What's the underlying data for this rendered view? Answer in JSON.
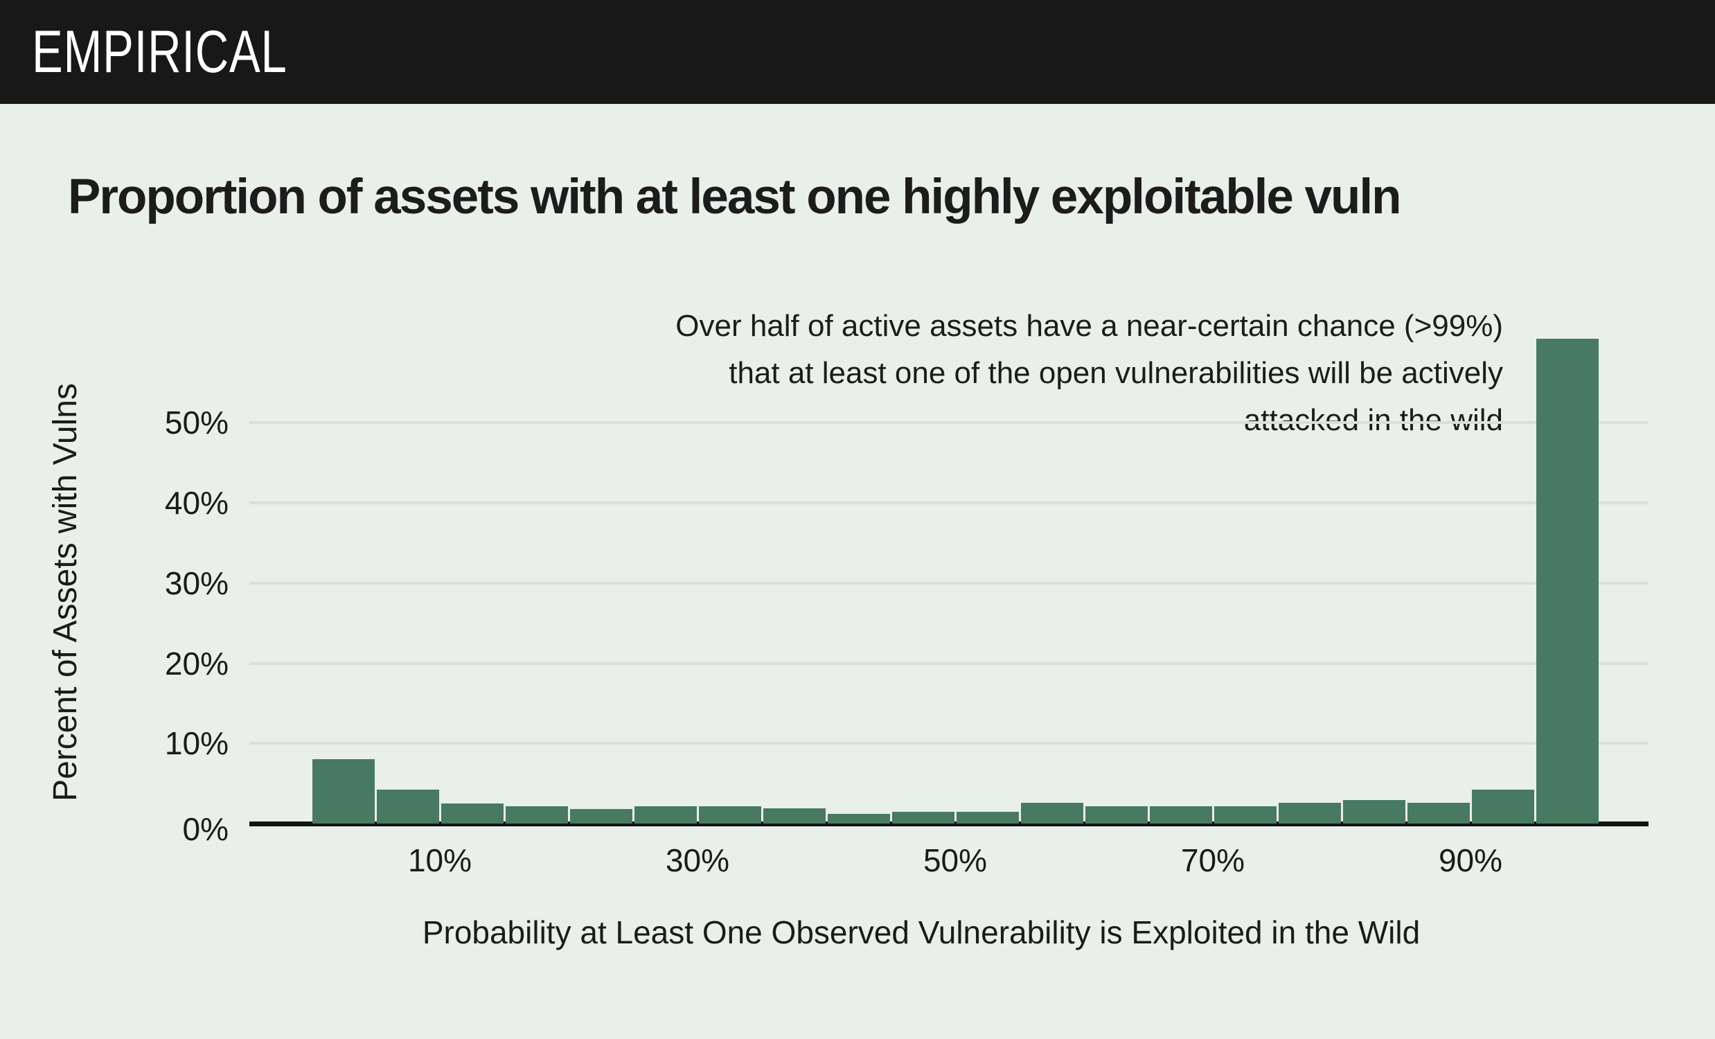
{
  "header": {
    "logo": "EMPIRICAL"
  },
  "title": "Proportion of assets with at least one highly exploitable vuln",
  "annotation": {
    "lines": [
      "Over half of active assets have a near-certain chance (>99%)",
      "that at least one of the open vulnerabilities will be actively",
      "attacked in the wild"
    ]
  },
  "chart_data": {
    "type": "bar",
    "subtype": "histogram",
    "title": "Proportion of assets with at least one highly exploitable vuln",
    "xlabel": "Probability at Least One Observed Vulnerability is Exploited in the Wild",
    "ylabel": "Percent of Assets with Vulns",
    "bin_width_percent": 5,
    "categories": [
      "0-5%",
      "5-10%",
      "10-15%",
      "15-20%",
      "20-25%",
      "25-30%",
      "30-35%",
      "35-40%",
      "40-45%",
      "45-50%",
      "50-55%",
      "55-60%",
      "60-65%",
      "65-70%",
      "70-75%",
      "75-80%",
      "80-85%",
      "85-90%",
      "90-95%",
      "95-100%"
    ],
    "bin_starts": [
      0,
      5,
      10,
      15,
      20,
      25,
      30,
      35,
      40,
      45,
      50,
      55,
      60,
      65,
      70,
      75,
      80,
      85,
      90,
      95
    ],
    "values": [
      8.0,
      4.2,
      2.5,
      2.2,
      1.8,
      2.2,
      2.2,
      1.9,
      1.2,
      1.5,
      1.5,
      2.6,
      2.2,
      2.2,
      2.2,
      2.6,
      2.9,
      2.6,
      4.2,
      60.5
    ],
    "x_ticks": [
      {
        "value": 10,
        "label": "10%"
      },
      {
        "value": 30,
        "label": "30%"
      },
      {
        "value": 50,
        "label": "50%"
      },
      {
        "value": 70,
        "label": "70%"
      },
      {
        "value": 90,
        "label": "90%"
      }
    ],
    "y_ticks": [
      {
        "value": 0,
        "label": "0%"
      },
      {
        "value": 10,
        "label": "10%"
      },
      {
        "value": 20,
        "label": "20%"
      },
      {
        "value": 30,
        "label": "30%"
      },
      {
        "value": 40,
        "label": "40%"
      },
      {
        "value": 50,
        "label": "50%"
      }
    ],
    "xlim": [
      0,
      100
    ],
    "ylim": [
      0,
      61
    ],
    "grid": "horizontal",
    "legend": "none",
    "colors": {
      "bar": "#477a60",
      "background": "#e9efe9",
      "header_bar": "#181818",
      "logo_text": "#ffffff",
      "gridline": "#d7e1d5",
      "axis_line": "#141414",
      "text": "#1b1b1b"
    }
  }
}
